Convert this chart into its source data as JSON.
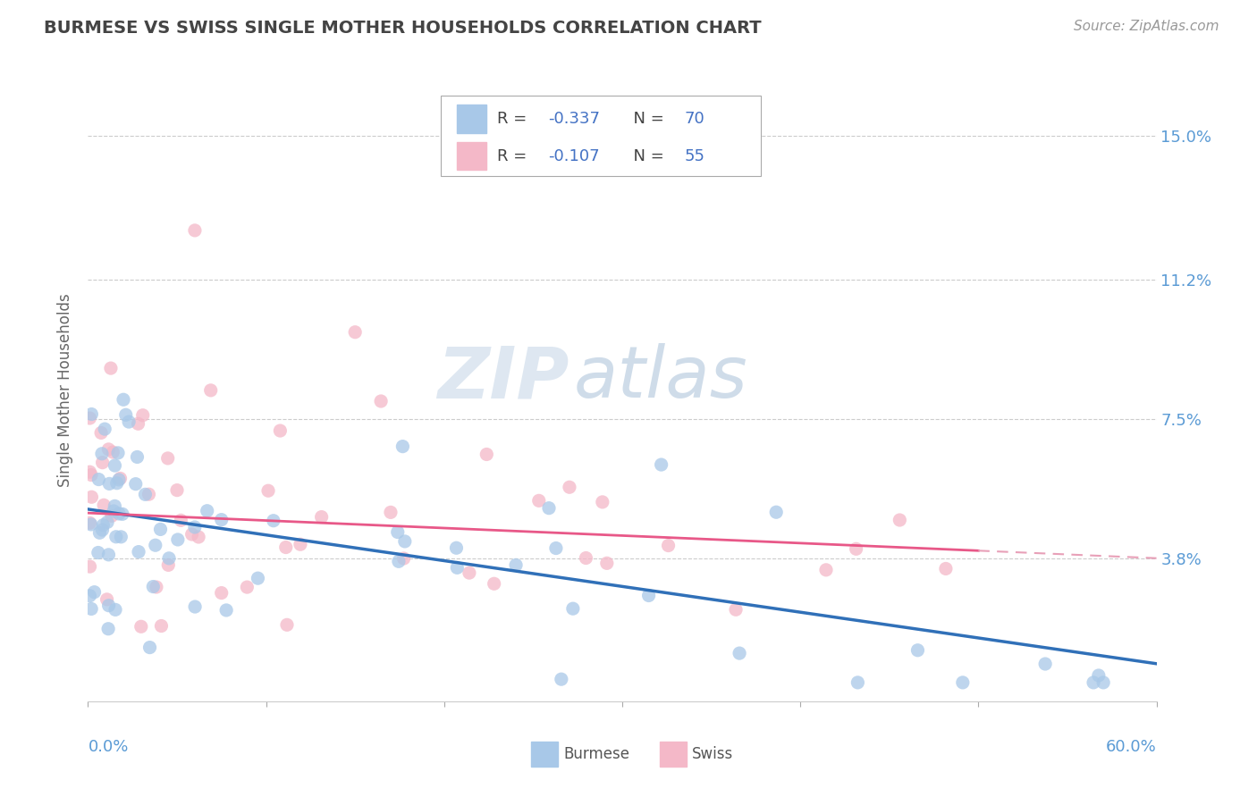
{
  "title": "BURMESE VS SWISS SINGLE MOTHER HOUSEHOLDS CORRELATION CHART",
  "source_text": "Source: ZipAtlas.com",
  "ylabel": "Single Mother Households",
  "burmese_r": -0.337,
  "burmese_n": 70,
  "swiss_r": -0.107,
  "swiss_n": 55,
  "burmese_color": "#a8c8e8",
  "swiss_color": "#f4b8c8",
  "burmese_line_color": "#3070b8",
  "swiss_line_color": "#e85888",
  "swiss_line_dash_color": "#e8a0b8",
  "xlim": [
    0.0,
    0.6
  ],
  "ylim": [
    0.0,
    0.165
  ],
  "yticks": [
    0.038,
    0.075,
    0.112,
    0.15
  ],
  "ytick_labels": [
    "3.8%",
    "7.5%",
    "11.2%",
    "15.0%"
  ],
  "xtick_left_label": "0.0%",
  "xtick_right_label": "60.0%",
  "watermark_zip": "ZIP",
  "watermark_atlas": "atlas",
  "background_color": "#ffffff",
  "grid_color": "#cccccc",
  "title_color": "#444444",
  "axis_label_color": "#666666",
  "tick_label_color": "#5b9bd5",
  "legend_r_color": "#4472c4",
  "burmese_label": "Burmese",
  "swiss_label": "Swiss",
  "by_line_start": 0.051,
  "by_line_end": 0.01,
  "sy_line_start": 0.05,
  "sy_line_end": 0.038,
  "sy_line_dash_end": 0.033
}
